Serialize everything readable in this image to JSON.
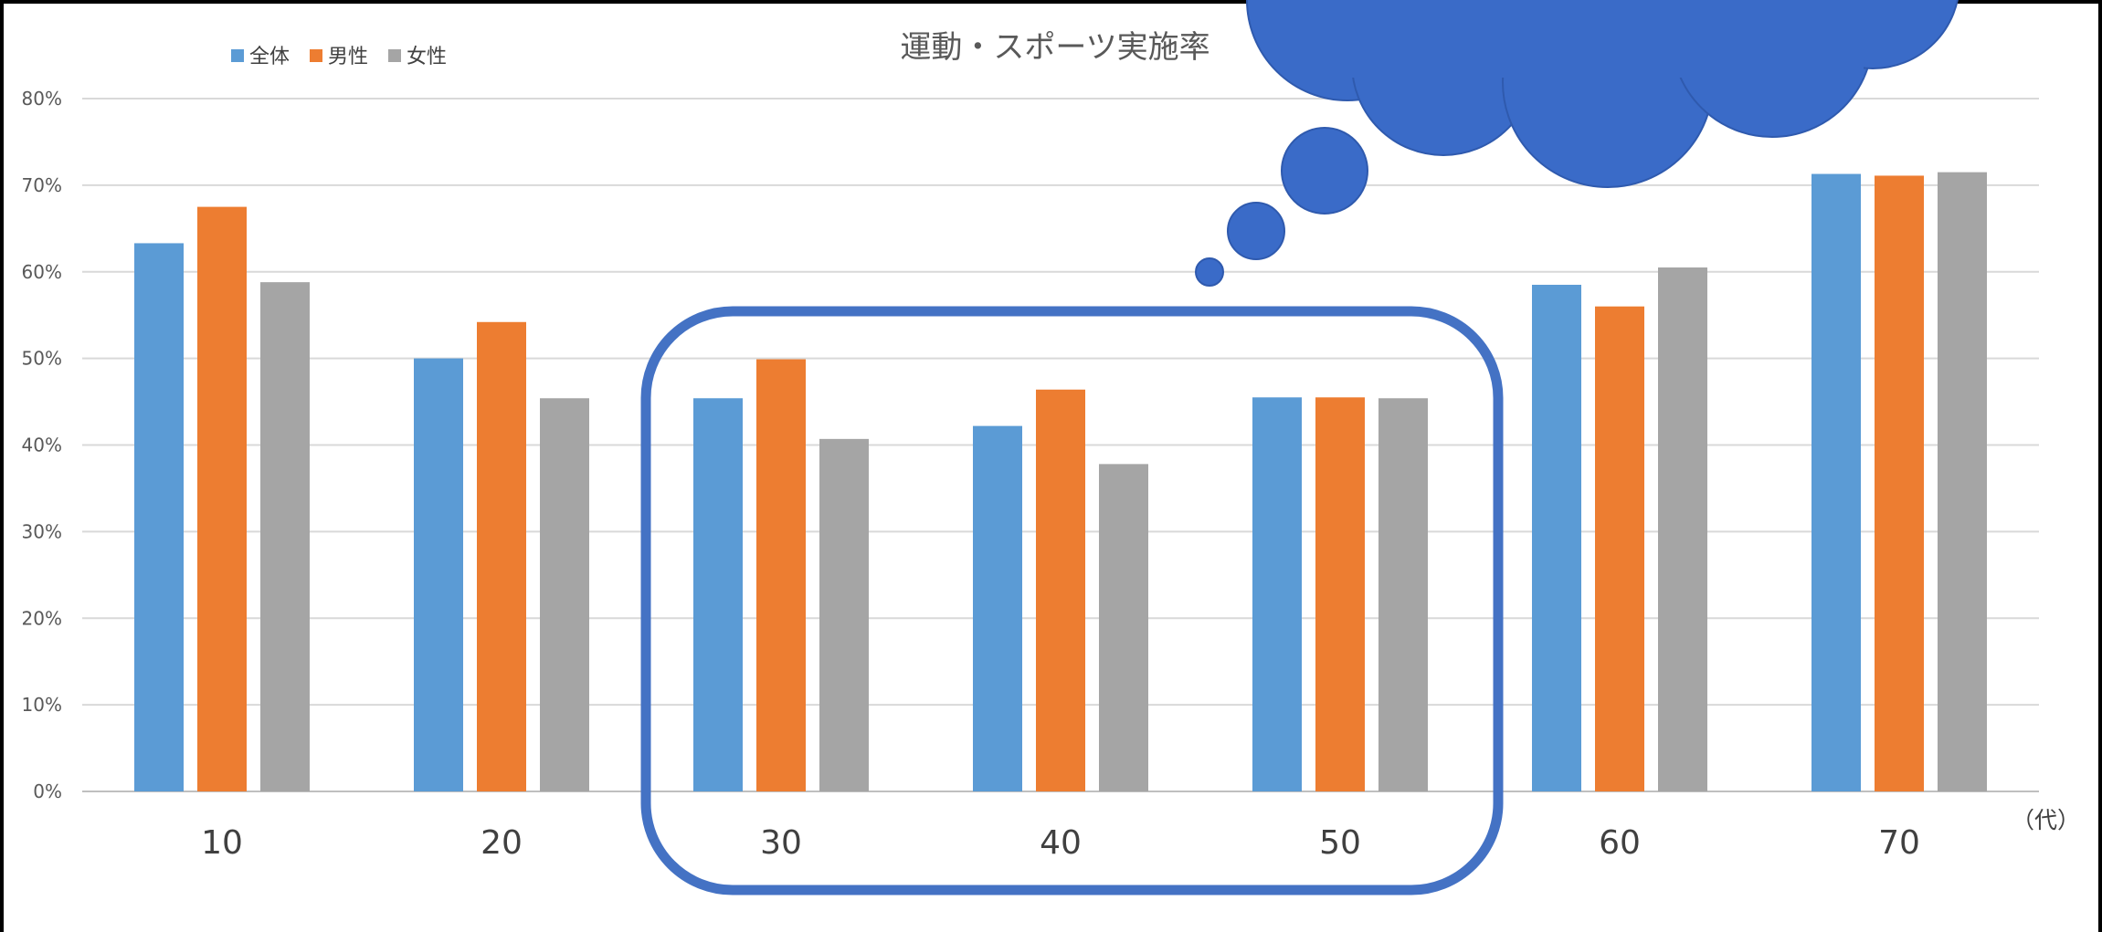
{
  "chart_data": {
    "type": "bar",
    "title": "運動・スポーツ実施率",
    "categories": [
      "10",
      "20",
      "30",
      "40",
      "50",
      "60",
      "70"
    ],
    "x_unit": "（代）",
    "series": [
      {
        "name": "全体",
        "color": "#5B9BD5",
        "values": [
          63.3,
          50.0,
          45.4,
          42.2,
          45.5,
          58.5,
          71.3
        ]
      },
      {
        "name": "男性",
        "color": "#ED7D31",
        "values": [
          67.5,
          54.2,
          49.9,
          46.4,
          45.5,
          56.0,
          71.1
        ]
      },
      {
        "name": "女性",
        "color": "#A5A5A5",
        "values": [
          58.8,
          45.4,
          40.7,
          37.8,
          45.4,
          60.5,
          71.5
        ]
      }
    ],
    "ylim": [
      0,
      80
    ],
    "yticks": [
      "0%",
      "10%",
      "20%",
      "30%",
      "40%",
      "50%",
      "60%",
      "70%",
      "80%"
    ],
    "grid": true,
    "legend": "top-left",
    "annotations": [
      {
        "kind": "rounded-rectangle highlight",
        "categories": [
          "30",
          "40",
          "50"
        ],
        "color": "#4472C4"
      },
      {
        "kind": "thought-bubble cloud",
        "color": "#4472C4"
      }
    ]
  }
}
